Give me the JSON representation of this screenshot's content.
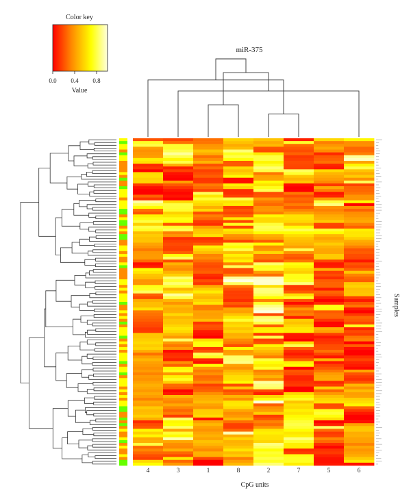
{
  "chart_data": {
    "type": "heatmap",
    "title": "miR-375",
    "xlabel": "CpG units",
    "ylabel": "Samples",
    "columns": [
      "4",
      "3",
      "1",
      "8",
      "2",
      "7",
      "5",
      "6"
    ],
    "value_range": [
      0,
      1
    ],
    "color_key": {
      "title": "Color key",
      "label": "Value",
      "ticks": [
        "0.0",
        "0.4",
        "0.8"
      ],
      "colors": [
        "#ff0000",
        "#ff8c00",
        "#ffff00",
        "#ffffe0"
      ]
    },
    "sidebar_colors": [
      "#ff8c00",
      "#ffff00",
      "#66ff00"
    ],
    "col_dendrogram": {
      "merges": [
        [
          5,
          6,
          0.25
        ],
        [
          3,
          4,
          0.35
        ],
        [
          2,
          8,
          0.5
        ],
        [
          1,
          9,
          0.62
        ],
        [
          10,
          11,
          0.7
        ],
        [
          12,
          13,
          0.85
        ]
      ]
    },
    "row_count": 116,
    "grid_pattern_note": "values estimated"
  }
}
